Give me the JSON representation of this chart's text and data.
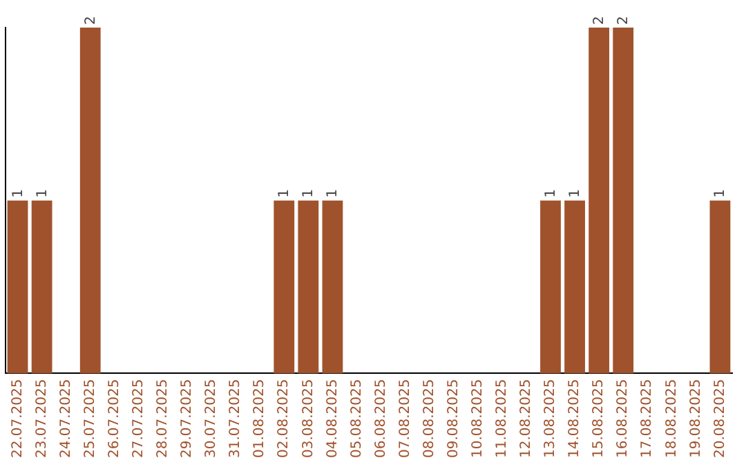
{
  "chart_data": {
    "type": "bar",
    "categories": [
      "22.07.2025",
      "23.07.2025",
      "24.07.2025",
      "25.07.2025",
      "26.07.2025",
      "27.07.2025",
      "28.07.2025",
      "29.07.2025",
      "30.07.2025",
      "31.07.2025",
      "01.08.2025",
      "02.08.2025",
      "03.08.2025",
      "04.08.2025",
      "05.08.2025",
      "06.08.2025",
      "07.08.2025",
      "08.08.2025",
      "09.08.2025",
      "10.08.2025",
      "11.08.2025",
      "12.08.2025",
      "13.08.2025",
      "14.08.2025",
      "15.08.2025",
      "16.08.2025",
      "17.08.2025",
      "18.08.2025",
      "19.08.2025",
      "20.08.2025"
    ],
    "values": [
      1,
      1,
      0,
      2,
      0,
      0,
      0,
      0,
      0,
      0,
      0,
      1,
      1,
      1,
      0,
      0,
      0,
      0,
      0,
      0,
      0,
      0,
      1,
      1,
      2,
      2,
      0,
      0,
      0,
      1
    ],
    "value_labels": [
      "1",
      "1",
      null,
      "2",
      null,
      null,
      null,
      null,
      null,
      null,
      null,
      "1",
      "1",
      "1",
      null,
      null,
      null,
      null,
      null,
      null,
      null,
      null,
      "1",
      "1",
      "2",
      "2",
      null,
      null,
      null,
      "1"
    ],
    "color": "#a0522d",
    "grid": false,
    "legend": false,
    "tick_labels": "x"
  }
}
